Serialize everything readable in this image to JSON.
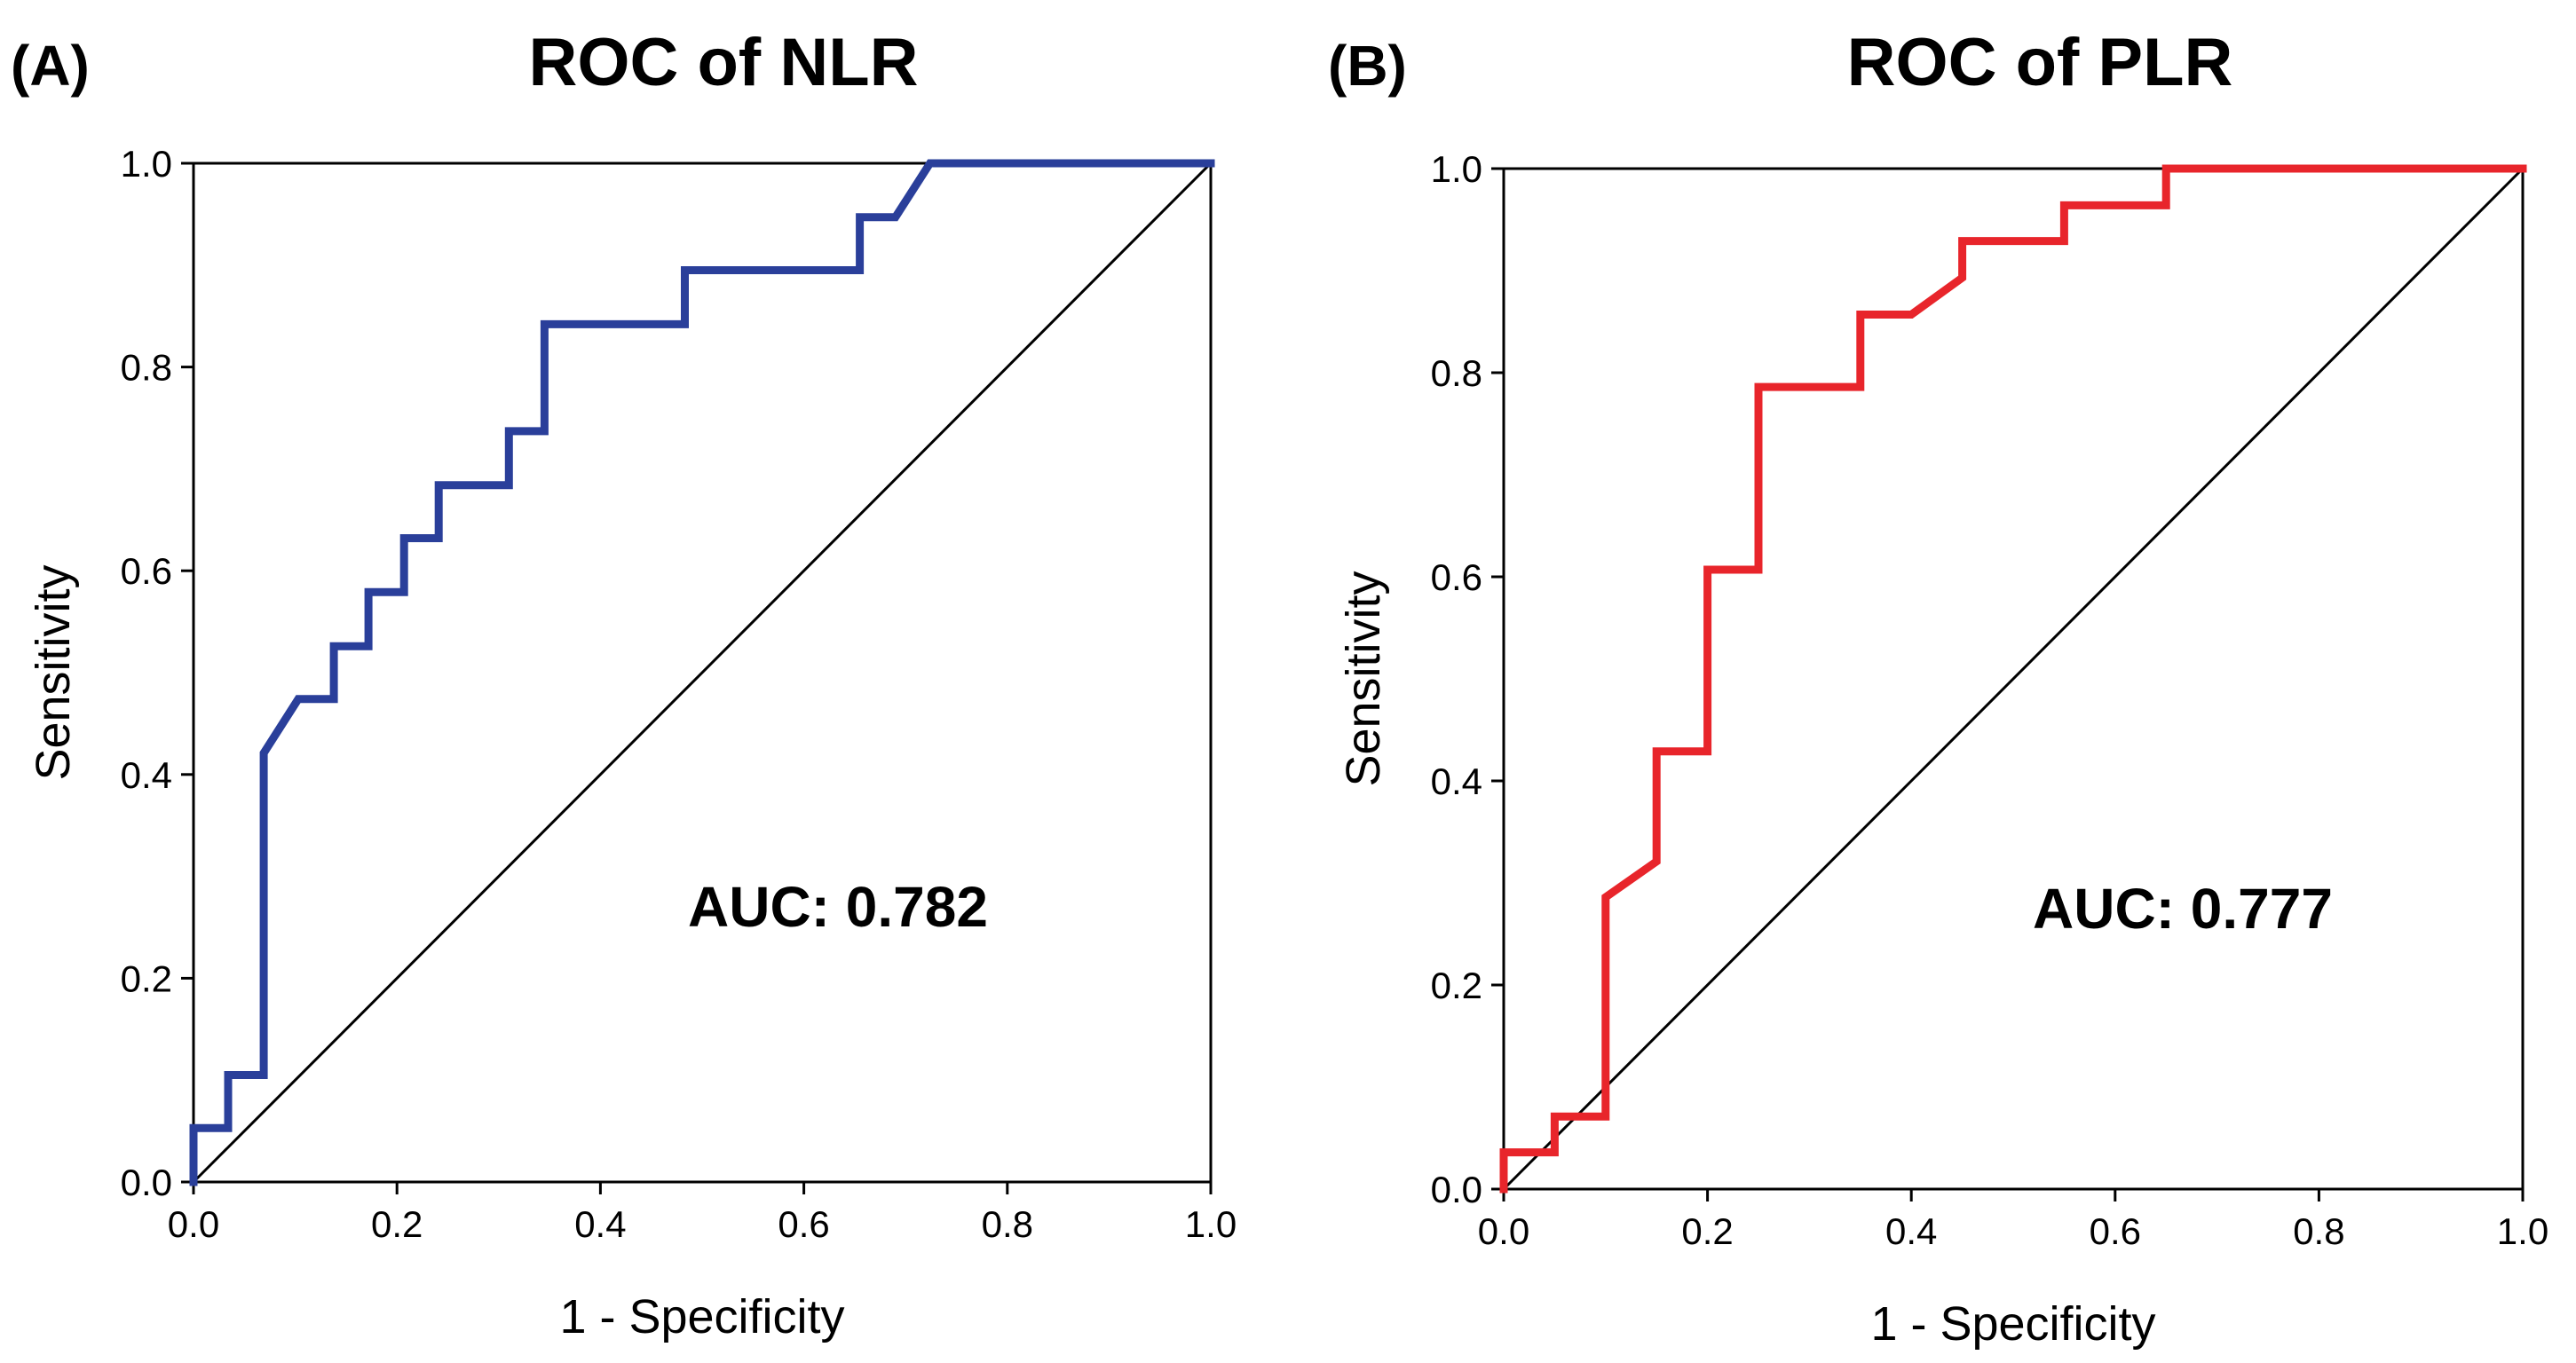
{
  "chart_data": [
    {
      "type": "line",
      "panel_label": "(A)",
      "title": "ROC of NLR",
      "xlabel": "1 - Specificity",
      "ylabel": "Sensitivity",
      "xlim": [
        0,
        1
      ],
      "ylim": [
        0,
        1
      ],
      "xticks": [
        "0.0",
        "0.2",
        "0.4",
        "0.6",
        "0.8",
        "1.0"
      ],
      "yticks": [
        "0.0",
        "0.2",
        "0.4",
        "0.6",
        "0.8",
        "1.0"
      ],
      "annotation": "AUC: 0.782",
      "color": "#2a3f9a",
      "reference_line": true,
      "series": [
        {
          "name": "NLR",
          "x": [
            0,
            0,
            0.034,
            0.034,
            0.069,
            0.069,
            0.103,
            0.138,
            0.138,
            0.172,
            0.172,
            0.207,
            0.207,
            0.241,
            0.241,
            0.31,
            0.31,
            0.345,
            0.345,
            0.483,
            0.483,
            0.655,
            0.655,
            0.69,
            0.724,
            1.0
          ],
          "y": [
            0,
            0.053,
            0.053,
            0.105,
            0.105,
            0.421,
            0.474,
            0.474,
            0.526,
            0.526,
            0.579,
            0.579,
            0.632,
            0.632,
            0.684,
            0.684,
            0.737,
            0.737,
            0.842,
            0.842,
            0.895,
            0.895,
            0.947,
            0.947,
            1.0,
            1.0
          ]
        }
      ]
    },
    {
      "type": "line",
      "panel_label": "(B)",
      "title": "ROC of PLR",
      "xlabel": "1 - Specificity",
      "ylabel": "Sensitivity",
      "xlim": [
        0,
        1
      ],
      "ylim": [
        0,
        1
      ],
      "xticks": [
        "0.0",
        "0.2",
        "0.4",
        "0.6",
        "0.8",
        "1.0"
      ],
      "yticks": [
        "0.0",
        "0.2",
        "0.4",
        "0.6",
        "0.8",
        "1.0"
      ],
      "annotation": "AUC: 0.777",
      "color": "#e8252b",
      "reference_line": true,
      "series": [
        {
          "name": "PLR",
          "x": [
            0,
            0,
            0.05,
            0.05,
            0.1,
            0.1,
            0.15,
            0.15,
            0.2,
            0.2,
            0.25,
            0.25,
            0.35,
            0.35,
            0.4,
            0.45,
            0.45,
            0.55,
            0.55,
            0.65,
            0.65,
            1.0
          ],
          "y": [
            0,
            0.036,
            0.036,
            0.071,
            0.071,
            0.286,
            0.321,
            0.429,
            0.429,
            0.607,
            0.607,
            0.786,
            0.786,
            0.857,
            0.857,
            0.893,
            0.929,
            0.929,
            0.964,
            0.964,
            1.0,
            1.0
          ]
        }
      ]
    }
  ]
}
